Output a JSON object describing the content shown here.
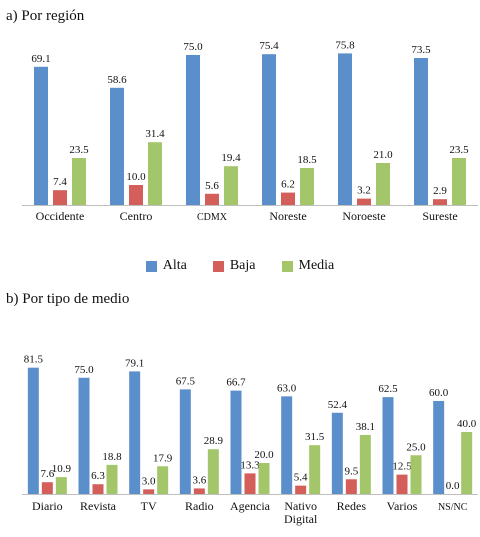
{
  "colors": {
    "alta": "#5b8fcb",
    "baja": "#d35e5a",
    "media": "#a4c66a"
  },
  "legend": [
    {
      "label": "Alta",
      "color": "#5b8fcb"
    },
    {
      "label": "Baja",
      "color": "#d35e5a"
    },
    {
      "label": "Media",
      "color": "#a4c66a"
    }
  ],
  "chart_data": [
    {
      "type": "bar",
      "title": "a) Por región",
      "categories": [
        "Occidente",
        "Centro",
        "CDMX",
        "Noreste",
        "Noroeste",
        "Sureste"
      ],
      "series": [
        {
          "name": "Alta",
          "values": [
            69.1,
            58.6,
            75.0,
            75.4,
            75.8,
            73.5
          ]
        },
        {
          "name": "Baja",
          "values": [
            7.4,
            10.0,
            5.6,
            6.2,
            3.2,
            2.9
          ]
        },
        {
          "name": "Media",
          "values": [
            23.5,
            31.4,
            19.4,
            18.5,
            21.0,
            23.5
          ]
        }
      ],
      "legend_position": "bottom",
      "grid": false
    },
    {
      "type": "bar",
      "title": "b) Por tipo de medio",
      "categories": [
        "Diario",
        "Revista",
        "TV",
        "Radio",
        "Agencia",
        "Nativo Digital",
        "Redes",
        "Varios",
        "NS/NC"
      ],
      "series": [
        {
          "name": "Alta",
          "values": [
            81.5,
            75.0,
            79.1,
            67.5,
            66.7,
            63.0,
            52.4,
            62.5,
            60.0
          ]
        },
        {
          "name": "Baja",
          "values": [
            7.6,
            6.3,
            3.0,
            3.6,
            13.3,
            5.4,
            9.5,
            12.5,
            0.0
          ]
        },
        {
          "name": "Media",
          "values": [
            10.9,
            18.8,
            17.9,
            28.9,
            20.0,
            31.5,
            38.1,
            25.0,
            40.0
          ]
        }
      ],
      "grid": false
    }
  ]
}
